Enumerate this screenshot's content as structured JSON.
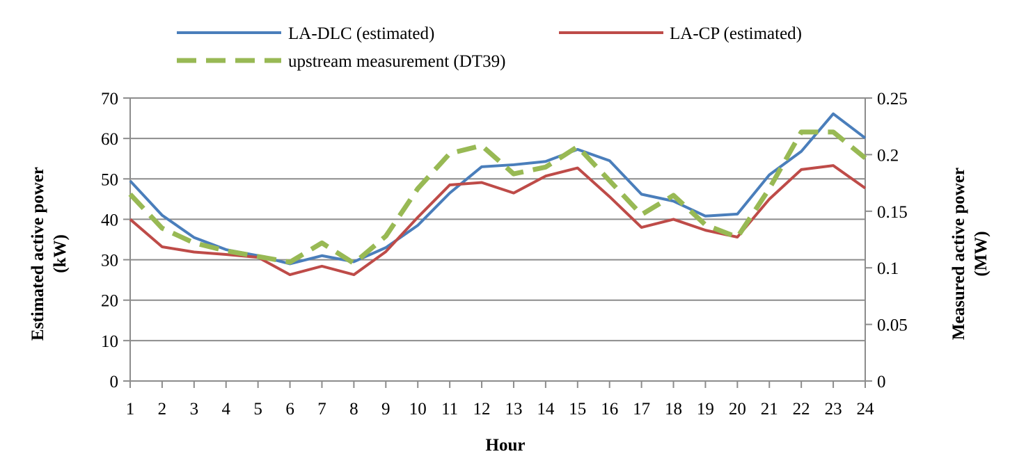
{
  "chart_data": {
    "type": "line",
    "x": [
      1,
      2,
      3,
      4,
      5,
      6,
      7,
      8,
      9,
      10,
      11,
      12,
      13,
      14,
      15,
      16,
      17,
      18,
      19,
      20,
      21,
      22,
      23,
      24
    ],
    "xlabel": "Hour",
    "ylabel_left_line1": "Estimated active power",
    "ylabel_left_line2": "(kW)",
    "ylabel_right_line1": "Measured active power",
    "ylabel_right_line2": "(MW)",
    "ylim_left": [
      0,
      70
    ],
    "ylim_right": [
      0,
      0.25
    ],
    "yticks_left": [
      "0",
      "10",
      "20",
      "30",
      "40",
      "50",
      "60",
      "70"
    ],
    "yticks_right": [
      "0",
      "0.05",
      "0.1",
      "0.15",
      "0.2",
      "0.25"
    ],
    "grid": true,
    "legend_position": "top",
    "series": [
      {
        "name": "LA-DLC (estimated)",
        "axis": "left",
        "color": "#4a7ebb",
        "style": "solid",
        "values": [
          49.5,
          41.0,
          35.5,
          32.5,
          31.0,
          29.0,
          31.0,
          29.5,
          33.0,
          38.5,
          46.5,
          53.0,
          53.5,
          54.3,
          57.3,
          54.5,
          46.2,
          44.5,
          40.8,
          41.3,
          51.0,
          56.8,
          66.1,
          60.1
        ]
      },
      {
        "name": "LA-CP (estimated)",
        "axis": "left",
        "color": "#be4b48",
        "style": "solid",
        "values": [
          40.0,
          33.2,
          31.9,
          31.3,
          30.6,
          26.3,
          28.4,
          26.3,
          32.0,
          40.5,
          48.5,
          49.1,
          46.5,
          50.7,
          52.7,
          45.6,
          38.0,
          40.0,
          37.3,
          35.6,
          45.0,
          52.3,
          53.3,
          47.7
        ]
      },
      {
        "name": "upstream measurement (DT39)",
        "axis": "right",
        "color": "#98b954",
        "style": "dashed",
        "values": [
          0.165,
          0.135,
          0.122,
          0.115,
          0.11,
          0.105,
          0.122,
          0.104,
          0.128,
          0.17,
          0.201,
          0.208,
          0.183,
          0.189,
          0.207,
          0.177,
          0.147,
          0.164,
          0.138,
          0.127,
          0.17,
          0.22,
          0.22,
          0.197
        ]
      }
    ]
  }
}
